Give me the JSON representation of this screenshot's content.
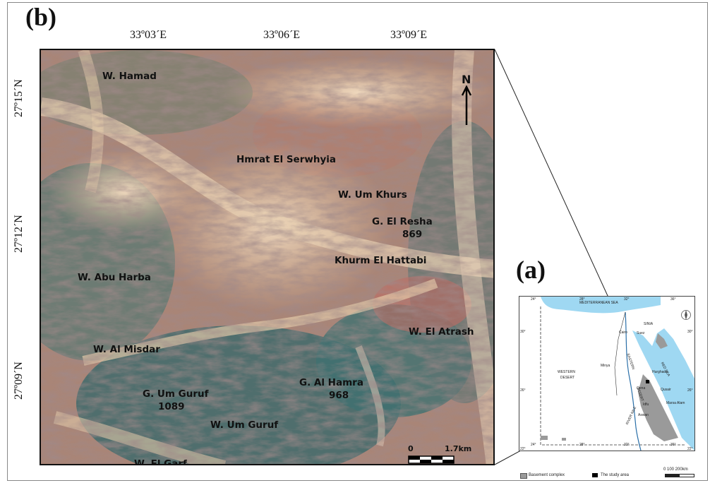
{
  "panels": {
    "b": "(b)",
    "a": "(a)"
  },
  "coords": {
    "lon": [
      "33º03´E",
      "33º06´E",
      "33º09´E"
    ],
    "lat": [
      "27º15´N",
      "27º12´N",
      "27º09´N"
    ]
  },
  "north_label": "N",
  "scale": {
    "zero": "0",
    "max": "1.7km"
  },
  "places": [
    {
      "text": "W. Hamad"
    },
    {
      "text": "Hmrat El Serwhyia"
    },
    {
      "text": "W. Um Khurs"
    },
    {
      "text": "G. El Resha"
    },
    {
      "text": "869"
    },
    {
      "text": "Khurm El Hattabi"
    },
    {
      "text": "W. Abu Harba"
    },
    {
      "text": "W. El Atrash"
    },
    {
      "text": "W. Al Misdar"
    },
    {
      "text": "G. Al Hamra"
    },
    {
      "text": "968"
    },
    {
      "text": "G. Um Guruf"
    },
    {
      "text": "1089"
    },
    {
      "text": "W. Um Guruf"
    },
    {
      "text": "W. El Garf"
    }
  ],
  "inset": {
    "lon_ticks": [
      "24°",
      "28°",
      "32°",
      "36°"
    ],
    "bottom_ticks": [
      "24°",
      "28°",
      "32°",
      "36°"
    ],
    "lat_ticks_left": [
      "30°",
      "26°",
      "22°"
    ],
    "lat_ticks_right": [
      "30°",
      "26°",
      "22°"
    ],
    "sea_med": "MEDITERRANEAN SEA",
    "sea_red": "RED SEA",
    "western_desert": [
      "WESTERN",
      "DESERT"
    ],
    "eastern_desert": [
      "EASTERN",
      "DESERT"
    ],
    "river": "RIVER NILE",
    "sinai": "SINIA",
    "cities": [
      "Cairo",
      "Suez",
      "Minya",
      "Hurghada",
      "Qena",
      "Qusair",
      "Idfu",
      "Marsa Alam",
      "Aswan"
    ],
    "legend_basement": "Basement complex",
    "legend_study": "The study area",
    "scale_text": "0   100  200km"
  },
  "colors": {
    "sea": "#9fd8f2",
    "basement": "#9a9a9a",
    "sand": "#e8c9a6"
  }
}
